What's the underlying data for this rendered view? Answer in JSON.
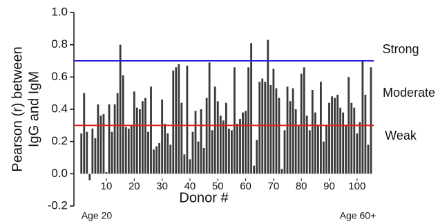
{
  "chart_data": {
    "type": "bar",
    "x_label": "Donor #",
    "y_label": [
      "Pearson (r) between",
      "IgG and IgM"
    ],
    "x": [
      1,
      2,
      3,
      4,
      5,
      6,
      7,
      8,
      9,
      10,
      11,
      12,
      13,
      14,
      15,
      16,
      17,
      18,
      19,
      20,
      21,
      22,
      23,
      24,
      25,
      26,
      27,
      28,
      29,
      30,
      31,
      32,
      33,
      34,
      35,
      36,
      37,
      38,
      39,
      40,
      41,
      42,
      43,
      44,
      45,
      46,
      47,
      48,
      49,
      50,
      51,
      52,
      53,
      54,
      55,
      56,
      57,
      58,
      59,
      60,
      61,
      62,
      63,
      64,
      65,
      66,
      67,
      68,
      69,
      70,
      71,
      72,
      73,
      74,
      75,
      76,
      77,
      78,
      79,
      80,
      81,
      82,
      83,
      84,
      85,
      86,
      87,
      88,
      89,
      90,
      91,
      92,
      93,
      94,
      95,
      96,
      97,
      98,
      99,
      100,
      101,
      102,
      103,
      104,
      105
    ],
    "values": [
      0.25,
      0.5,
      0.26,
      -0.04,
      0.28,
      0.22,
      0.43,
      0.36,
      0.37,
      0.01,
      0.43,
      0.26,
      0.43,
      0.5,
      0.8,
      0.61,
      0.29,
      0.28,
      0.3,
      0.51,
      0.41,
      0.4,
      0.45,
      0.47,
      0.26,
      0.54,
      0.15,
      0.17,
      0.19,
      0.46,
      0.31,
      0.25,
      0.18,
      0.64,
      0.66,
      0.68,
      0.44,
      0.12,
      0.67,
      0.09,
      0.26,
      0.39,
      0.2,
      0.4,
      0.16,
      0.47,
      0.69,
      0.27,
      0.54,
      0.45,
      0.36,
      0.33,
      0.44,
      0.28,
      0.27,
      0.66,
      0.31,
      0.34,
      0.38,
      0.39,
      0.66,
      0.81,
      0.05,
      0.21,
      0.57,
      0.59,
      0.57,
      0.83,
      0.55,
      0.65,
      0.53,
      0.47,
      0.03,
      0.27,
      0.54,
      0.45,
      0.53,
      0.4,
      0.3,
      0.62,
      0.66,
      0.36,
      0.27,
      0.52,
      0.38,
      0.3,
      0.57,
      0.2,
      0.3,
      0.44,
      0.48,
      0.47,
      0.49,
      0.41,
      0.38,
      0.3,
      0.6,
      0.44,
      0.41,
      0.25,
      0.32,
      0.7,
      0.49,
      0.18,
      0.66
    ],
    "color": "#3a3a3a",
    "xlim": [
      0,
      106
    ],
    "xticks": [
      10,
      20,
      30,
      40,
      50,
      60,
      70,
      80,
      90,
      100
    ],
    "ylim": [
      -0.2,
      1.0
    ],
    "yticks": [
      {
        "value": -0.2,
        "label": "-0.2"
      },
      {
        "value": 0,
        "label": "0.0"
      },
      0.2,
      0.4,
      0.6,
      0.8,
      {
        "value": 1,
        "label": "1.0"
      }
    ],
    "reference_lines": [
      {
        "value": 0.7,
        "label": "Strong",
        "color": "#2222dd"
      },
      {
        "value": 0.3,
        "label": "Weak",
        "color": "#dd2222"
      }
    ],
    "annotations": [
      "Moderate",
      "Age 20",
      "Age 60+"
    ]
  }
}
